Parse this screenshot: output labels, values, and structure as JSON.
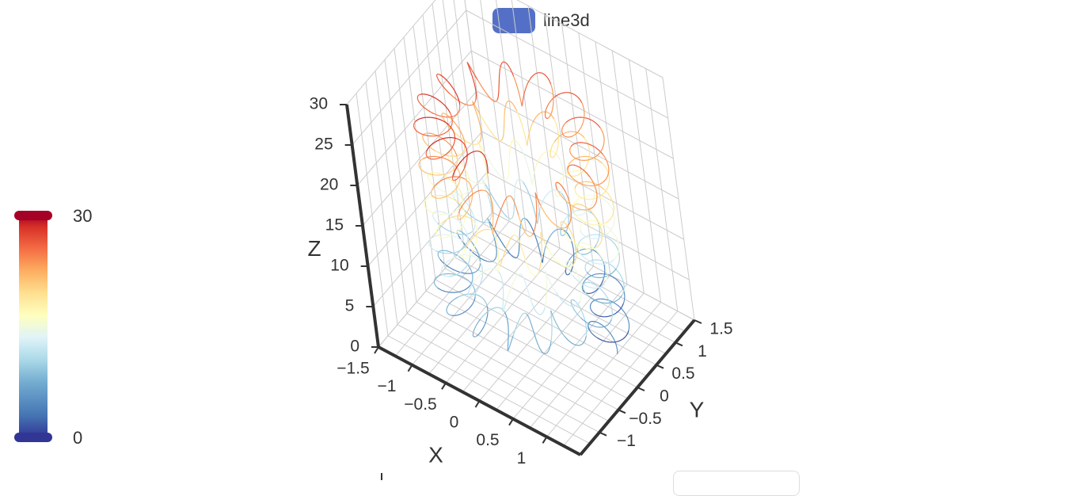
{
  "legend": {
    "series_name": "line3d",
    "color": "#5470c6"
  },
  "visual_map": {
    "max_label": "30",
    "min_label": "0",
    "colors": [
      "#313695",
      "#4575b4",
      "#74add1",
      "#abd9e9",
      "#e0f3f8",
      "#ffffbf",
      "#fee090",
      "#fdae61",
      "#f46d43",
      "#d73027",
      "#a50026"
    ]
  },
  "chart_data": {
    "type": "line3d",
    "series": [
      {
        "name": "line3d",
        "equation": "x = (1 + 0.25*cos(75*t))*cos(t); y = (1 + 0.25*cos(75*t))*sin(t); z = t + 2.0*sin(75*t)",
        "t_range": [
          0,
          30
        ],
        "t_step": 0.001,
        "color_by": "z"
      }
    ],
    "x_axis": {
      "label": "X",
      "range": [
        -1.5,
        1.5
      ],
      "ticks": [
        "-1.5",
        "-1",
        "-0.5",
        "0",
        "0.5",
        "1"
      ]
    },
    "y_axis": {
      "label": "Y",
      "range": [
        -1.5,
        1.5
      ],
      "ticks": [
        "-1",
        "-0.5",
        "0",
        "0.5",
        "1",
        "1.5"
      ]
    },
    "z_axis": {
      "label": "Z",
      "range": [
        0,
        30
      ],
      "ticks": [
        "0",
        "5",
        "10",
        "15",
        "20",
        "25",
        "30"
      ]
    },
    "visual_map_range": [
      0,
      30
    ],
    "grid": true,
    "legend_position": "top-center"
  }
}
